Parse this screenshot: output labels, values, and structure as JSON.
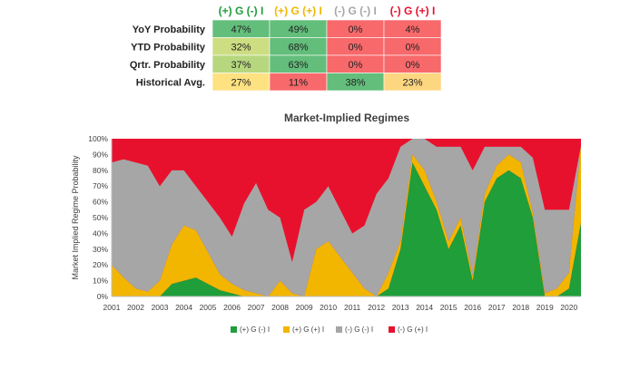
{
  "table": {
    "columns": [
      {
        "label": "(+) G (-) I",
        "color": "#1f9e3a"
      },
      {
        "label": "(+) G (+) I",
        "color": "#f2b600"
      },
      {
        "label": "(-) G (-) I",
        "color": "#a6a6a6"
      },
      {
        "label": "(-) G (+) I",
        "color": "#e8112d"
      }
    ],
    "rows": [
      {
        "label": "YoY Probability",
        "cells": [
          "47%",
          "49%",
          "0%",
          "4%"
        ],
        "colors": [
          "#63be7b",
          "#63be7b",
          "#f8696b",
          "#f8696b"
        ]
      },
      {
        "label": "YTD Probability",
        "cells": [
          "32%",
          "68%",
          "0%",
          "0%"
        ],
        "colors": [
          "#cddd82",
          "#63be7b",
          "#f8696b",
          "#f8696b"
        ]
      },
      {
        "label": "Qrtr. Probability",
        "cells": [
          "37%",
          "63%",
          "0%",
          "0%"
        ],
        "colors": [
          "#b7d77f",
          "#63be7b",
          "#f8696b",
          "#f8696b"
        ]
      },
      {
        "label": "Historical Avg.",
        "cells": [
          "27%",
          "11%",
          "38%",
          "23%"
        ],
        "colors": [
          "#fee282",
          "#f8696b",
          "#63be7b",
          "#fdd680"
        ]
      }
    ]
  },
  "chart_data": {
    "type": "area",
    "stacked": true,
    "title": "Market-Implied Regimes",
    "xlabel": "",
    "ylabel": "Market Implied Regime Probability",
    "ylim": [
      0,
      1
    ],
    "yticks": [
      "0%",
      "10%",
      "20%",
      "30%",
      "40%",
      "50%",
      "60%",
      "70%",
      "80%",
      "90%",
      "100%"
    ],
    "xticks": [
      "2001",
      "2002",
      "2003",
      "2004",
      "2005",
      "2006",
      "2007",
      "2008",
      "2009",
      "2010",
      "2011",
      "2012",
      "2013",
      "2014",
      "2015",
      "2016",
      "2017",
      "2018",
      "2019",
      "2020"
    ],
    "x": [
      2001.0,
      2001.5,
      2002.0,
      2002.5,
      2003.0,
      2003.5,
      2004.0,
      2004.5,
      2005.0,
      2005.5,
      2006.0,
      2006.5,
      2007.0,
      2007.5,
      2008.0,
      2008.5,
      2009.0,
      2009.5,
      2010.0,
      2010.5,
      2011.0,
      2011.5,
      2012.0,
      2012.5,
      2013.0,
      2013.5,
      2014.0,
      2014.5,
      2015.0,
      2015.5,
      2016.0,
      2016.5,
      2017.0,
      2017.5,
      2018.0,
      2018.5,
      2019.0,
      2019.5,
      2020.0,
      2020.5
    ],
    "series": [
      {
        "name": "(+) G (-) I",
        "color": "#1f9e3a",
        "values": [
          0.0,
          0.0,
          0.0,
          0.0,
          0.0,
          0.08,
          0.1,
          0.12,
          0.08,
          0.04,
          0.02,
          0.0,
          0.0,
          0.0,
          0.0,
          0.0,
          0.0,
          0.0,
          0.0,
          0.0,
          0.0,
          0.0,
          0.0,
          0.05,
          0.3,
          0.85,
          0.7,
          0.55,
          0.3,
          0.45,
          0.1,
          0.6,
          0.75,
          0.8,
          0.75,
          0.5,
          0.0,
          0.0,
          0.05,
          0.47
        ]
      },
      {
        "name": "(+) G (+) I",
        "color": "#f2b600",
        "values": [
          0.2,
          0.12,
          0.05,
          0.03,
          0.1,
          0.25,
          0.35,
          0.3,
          0.2,
          0.1,
          0.06,
          0.04,
          0.02,
          0.0,
          0.1,
          0.02,
          0.0,
          0.3,
          0.35,
          0.25,
          0.15,
          0.05,
          0.0,
          0.1,
          0.05,
          0.05,
          0.1,
          0.05,
          0.05,
          0.05,
          0.03,
          0.05,
          0.08,
          0.1,
          0.1,
          0.03,
          0.02,
          0.05,
          0.1,
          0.49
        ]
      },
      {
        "name": "(-) G (-) I",
        "color": "#a6a6a6",
        "values": [
          0.65,
          0.75,
          0.8,
          0.8,
          0.6,
          0.47,
          0.35,
          0.28,
          0.32,
          0.36,
          0.3,
          0.55,
          0.7,
          0.55,
          0.4,
          0.2,
          0.55,
          0.3,
          0.35,
          0.3,
          0.25,
          0.4,
          0.65,
          0.6,
          0.6,
          0.1,
          0.2,
          0.35,
          0.6,
          0.45,
          0.67,
          0.3,
          0.12,
          0.05,
          0.1,
          0.35,
          0.53,
          0.5,
          0.4,
          0.0
        ]
      },
      {
        "name": "(-) G (+) I",
        "color": "#e8112d",
        "values": [
          0.15,
          0.13,
          0.15,
          0.17,
          0.3,
          0.2,
          0.2,
          0.3,
          0.4,
          0.5,
          0.62,
          0.41,
          0.28,
          0.45,
          0.5,
          0.78,
          0.45,
          0.4,
          0.3,
          0.45,
          0.6,
          0.55,
          0.35,
          0.25,
          0.05,
          0.0,
          0.0,
          0.05,
          0.05,
          0.05,
          0.2,
          0.05,
          0.05,
          0.05,
          0.05,
          0.12,
          0.45,
          0.45,
          0.45,
          0.04
        ]
      }
    ],
    "legend": "bottom"
  }
}
